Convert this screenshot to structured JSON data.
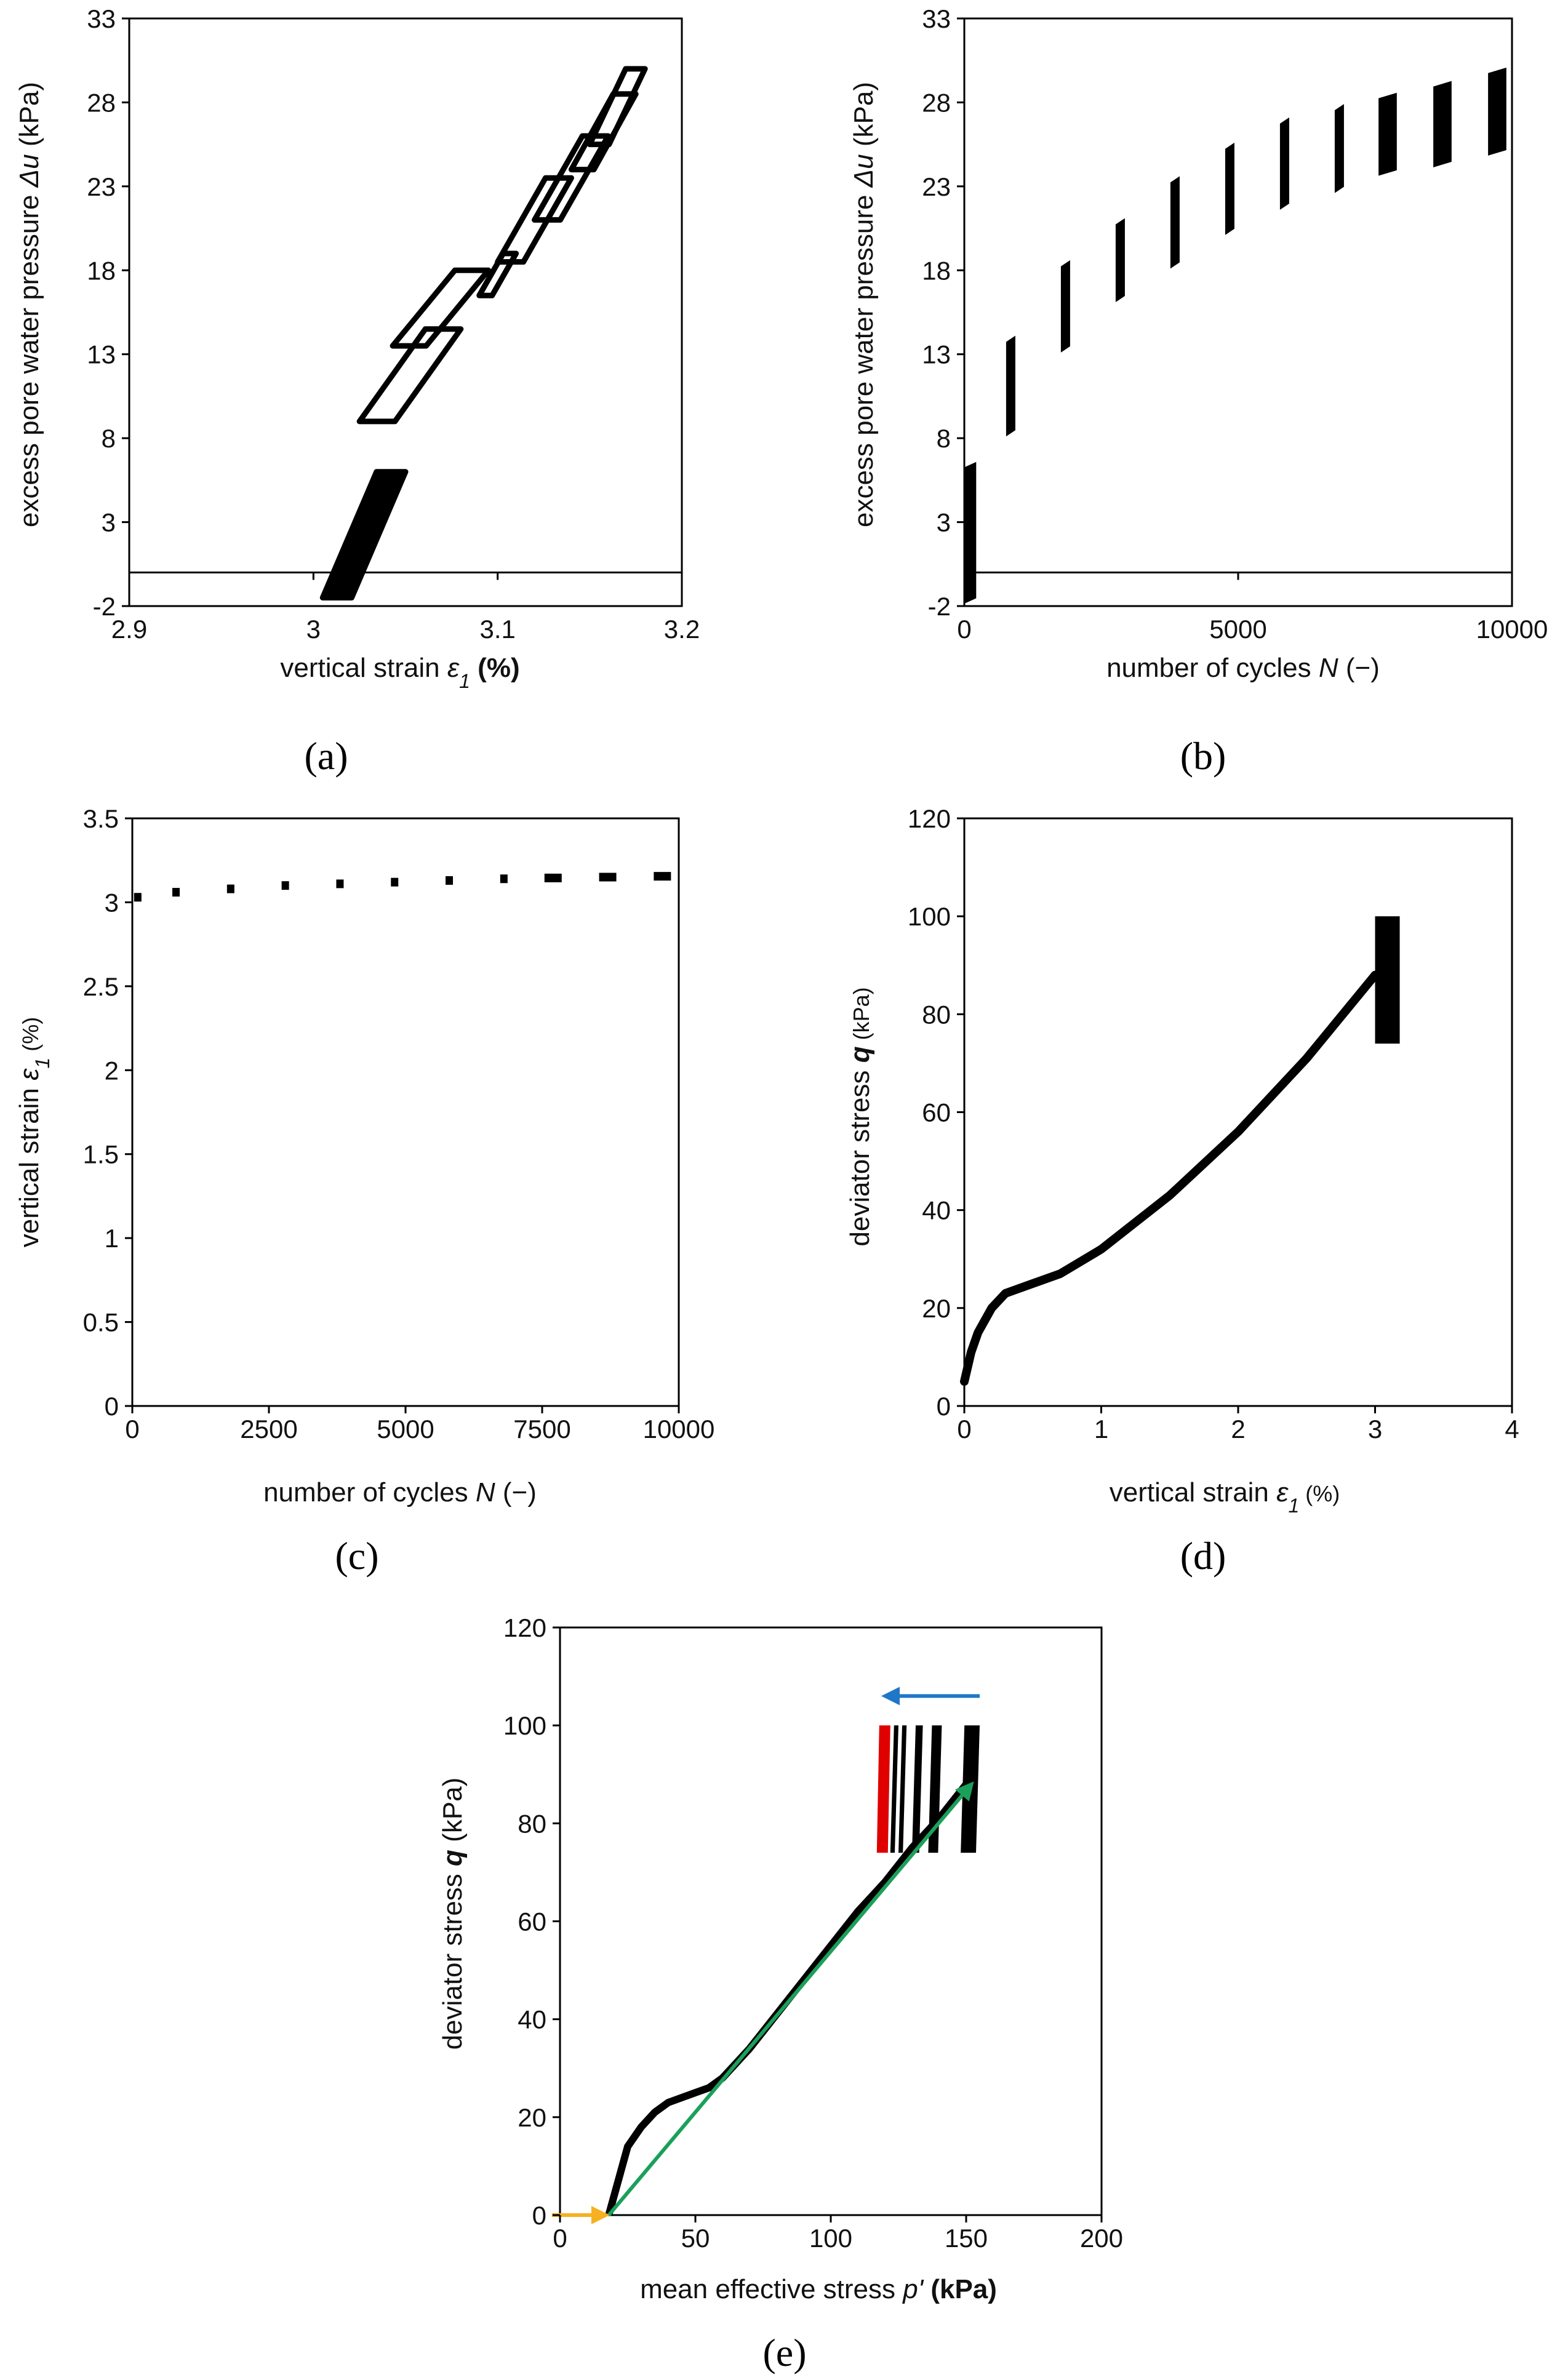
{
  "colors": {
    "data": "#000000",
    "red": "#e00000",
    "blue": "#1f77c8",
    "green": "#1aa05a",
    "orange": "#f6b021"
  },
  "chart_data": [
    {
      "id": "a",
      "type": "line",
      "panel_label": "(a)",
      "xlabel_pre": "vertical strain ",
      "xlabel_sym": "ε",
      "xlabel_sub": "1",
      "xlabel_unit": " (%)",
      "ylabel_pre": "excess pore water pressure ",
      "ylabel_sym": "Δu",
      "ylabel_unit": " (kPa)",
      "xlim": [
        2.9,
        3.2
      ],
      "ylim": [
        -2,
        33
      ],
      "x_ticks": [
        "2.9",
        "3",
        "3.1",
        "3.2"
      ],
      "y_ticks": [
        "-2",
        "3",
        "8",
        "13",
        "18",
        "23",
        "28",
        "33"
      ],
      "loops": [
        {
          "strain": [
            3.005,
            3.05
          ],
          "u": [
            -1.5,
            6.0
          ]
        },
        {
          "strain": [
            3.025,
            3.08
          ],
          "u": [
            9.0,
            14.5
          ]
        },
        {
          "strain": [
            3.043,
            3.095
          ],
          "u": [
            13.5,
            18.0
          ]
        },
        {
          "strain": [
            3.09,
            3.11
          ],
          "u": [
            16.5,
            19.0
          ]
        },
        {
          "strain": [
            3.1,
            3.14
          ],
          "u": [
            18.5,
            23.5
          ]
        },
        {
          "strain": [
            3.12,
            3.16
          ],
          "u": [
            21.0,
            26.0
          ]
        },
        {
          "strain": [
            3.14,
            3.175
          ],
          "u": [
            24.0,
            28.5
          ]
        },
        {
          "strain": [
            3.15,
            3.18
          ],
          "u": [
            25.5,
            30.0
          ]
        }
      ]
    },
    {
      "id": "b",
      "type": "scatter",
      "panel_label": "(b)",
      "xlabel_pre": "number of cycles ",
      "xlabel_sym": "N",
      "xlabel_unit": " (−)",
      "ylabel_pre": "excess pore water pressure ",
      "ylabel_sym": "Δu",
      "ylabel_unit": " (kPa)",
      "xlim": [
        0,
        10000
      ],
      "ylim": [
        -2,
        33
      ],
      "x_ticks": [
        "0",
        "5000",
        "10000"
      ],
      "y_ticks": [
        "-2",
        "3",
        "8",
        "13",
        "18",
        "23",
        "28",
        "33"
      ],
      "bands": [
        {
          "N": [
            0,
            200
          ],
          "u_min": -1.5,
          "u_max": 6.5
        },
        {
          "N": [
            780,
            880
          ],
          "u_min": 8.5,
          "u_max": 14.0
        },
        {
          "N": [
            1780,
            1880
          ],
          "u_min": 13.5,
          "u_max": 18.5
        },
        {
          "N": [
            2780,
            2880
          ],
          "u_min": 16.5,
          "u_max": 21.0
        },
        {
          "N": [
            3780,
            3880
          ],
          "u_min": 18.5,
          "u_max": 23.5
        },
        {
          "N": [
            4780,
            4880
          ],
          "u_min": 20.5,
          "u_max": 25.5
        },
        {
          "N": [
            5780,
            5880
          ],
          "u_min": 22.0,
          "u_max": 27.0
        },
        {
          "N": [
            6780,
            6880
          ],
          "u_min": 23.0,
          "u_max": 27.8
        },
        {
          "N": [
            7580,
            7880
          ],
          "u_min": 24.0,
          "u_max": 28.5
        },
        {
          "N": [
            8580,
            8880
          ],
          "u_min": 24.5,
          "u_max": 29.2
        },
        {
          "N": [
            9580,
            9880
          ],
          "u_min": 25.2,
          "u_max": 30.0
        }
      ]
    },
    {
      "id": "c",
      "type": "scatter",
      "panel_label": "(c)",
      "xlabel_pre": "number of cycles ",
      "xlabel_sym": "N",
      "xlabel_unit": " (−)",
      "ylabel_pre": "vertical strain ",
      "ylabel_sym": "ε",
      "ylabel_sub": "1",
      "ylabel_unit": " (%)",
      "xlim": [
        0,
        10000
      ],
      "ylim": [
        0,
        3.5
      ],
      "x_ticks": [
        "0",
        "2500",
        "5000",
        "7500",
        "10000"
      ],
      "y_ticks": [
        "0",
        "0.5",
        "1",
        "1.5",
        "2",
        "2.5",
        "3",
        "3.5"
      ],
      "x": [
        100,
        800,
        1800,
        2800,
        3800,
        4800,
        5800,
        6800,
        7700,
        8700,
        9700
      ],
      "y": [
        3.03,
        3.06,
        3.08,
        3.1,
        3.11,
        3.12,
        3.13,
        3.14,
        3.145,
        3.15,
        3.155
      ]
    },
    {
      "id": "d",
      "type": "line",
      "panel_label": "(d)",
      "xlabel_pre": "vertical strain ",
      "xlabel_sym": "ε",
      "xlabel_sub": "1",
      "xlabel_unit": " (%)",
      "ylabel_pre": "deviator stress ",
      "ylabel_sym": "q",
      "ylabel_unit": " (kPa)",
      "xlim": [
        0,
        4
      ],
      "ylim": [
        0,
        120
      ],
      "x_ticks": [
        "0",
        "1",
        "2",
        "3",
        "4"
      ],
      "y_ticks": [
        "0",
        "20",
        "40",
        "60",
        "80",
        "100",
        "120"
      ],
      "x": [
        0.0,
        0.05,
        0.1,
        0.2,
        0.3,
        0.4,
        0.5,
        0.7,
        1.0,
        1.5,
        2.0,
        2.5,
        3.0
      ],
      "y": [
        5,
        11,
        15,
        20,
        23,
        24,
        25,
        27,
        32,
        43,
        56,
        71,
        88
      ],
      "cyclic_band": {
        "strain": [
          3.0,
          3.18
        ],
        "q": [
          74,
          100
        ]
      }
    },
    {
      "id": "e",
      "type": "line",
      "panel_label": "(e)",
      "xlabel_pre": "mean effective stress ",
      "xlabel_sym": "p'",
      "xlabel_unit": " (kPa)",
      "ylabel_pre": "deviator stress ",
      "ylabel_sym": "q",
      "ylabel_unit": " (kPa)",
      "xlim": [
        0,
        200
      ],
      "ylim": [
        0,
        120
      ],
      "x_ticks": [
        "0",
        "50",
        "100",
        "150",
        "200"
      ],
      "y_ticks": [
        "0",
        "20",
        "40",
        "60",
        "80",
        "100",
        "120"
      ],
      "x": [
        18,
        20,
        22,
        25,
        30,
        35,
        40,
        45,
        50,
        55,
        60,
        70,
        80,
        90,
        100,
        110,
        120,
        130,
        140,
        150
      ],
      "y": [
        0,
        4,
        8,
        14,
        18,
        21,
        23,
        24,
        25,
        26,
        28,
        34,
        41,
        48,
        55,
        62,
        68,
        75,
        81,
        88
      ],
      "cyclic_bands_black": [
        {
          "p": [
            148,
            155
          ],
          "q": [
            74,
            100
          ]
        },
        {
          "p": [
            136,
            141
          ],
          "q": [
            74,
            100
          ]
        },
        {
          "p": [
            130,
            134
          ],
          "q": [
            74,
            100
          ]
        },
        {
          "p": [
            125,
            128
          ],
          "q": [
            74,
            100
          ]
        },
        {
          "p": [
            122,
            125
          ],
          "q": [
            74,
            100
          ]
        }
      ],
      "cyclic_band_red": {
        "p": [
          117,
          122
        ],
        "q": [
          74,
          100
        ]
      },
      "arrow_blue": {
        "from": [
          155,
          106
        ],
        "to": [
          120,
          106
        ]
      },
      "arrow_green": {
        "from": [
          18,
          0
        ],
        "to": [
          152,
          88
        ]
      },
      "arrow_orange": {
        "from": [
          -3,
          0
        ],
        "to": [
          17,
          0
        ]
      }
    }
  ]
}
